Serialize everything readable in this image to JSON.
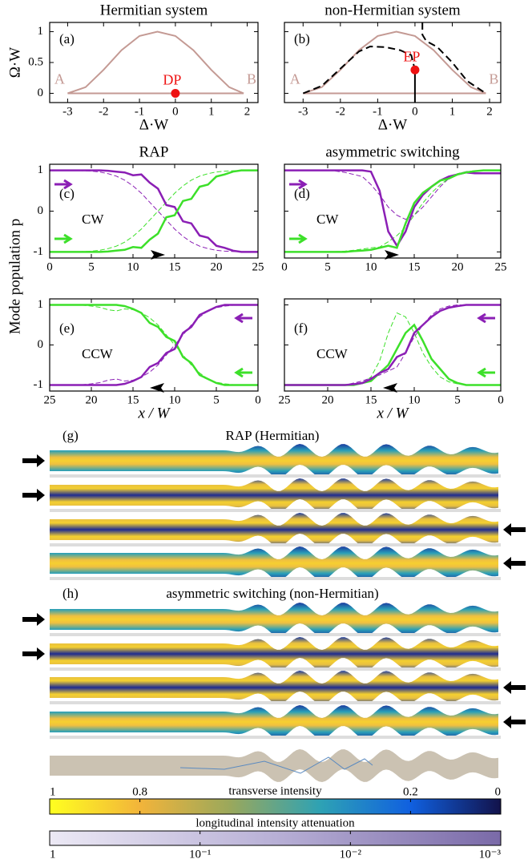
{
  "chart_data": [
    {
      "type": "line",
      "title": "Hermitian system",
      "panel_label": "(a)",
      "xlabel": "Δ·W",
      "ylabel": "Ω·W",
      "xlim": [
        -3.5,
        2.3
      ],
      "ylim": [
        -0.15,
        1.15
      ],
      "xticks": [
        -3,
        -2,
        -1,
        0,
        1,
        2
      ],
      "yticks": [
        0,
        0.5,
        1
      ],
      "series": [
        {
          "x": [
            -3,
            -2.5,
            -2,
            -1.5,
            -1,
            -0.5,
            0,
            0.5,
            1,
            1.5,
            1.9
          ],
          "values": [
            0,
            0.1,
            0.38,
            0.7,
            0.93,
            1,
            0.93,
            0.7,
            0.38,
            0.1,
            0
          ],
          "color": "#c49a94",
          "linewidth": 2
        },
        {
          "x": [
            -3,
            1.9
          ],
          "values": [
            0,
            0
          ],
          "color": "#c49a94",
          "linewidth": 2,
          "labels": [
            "A",
            "B"
          ]
        }
      ],
      "points": [
        {
          "label": "DP",
          "x": 0,
          "y": 0,
          "color": "#ee1111"
        }
      ]
    },
    {
      "type": "line",
      "title": "non-Hermitian system",
      "panel_label": "(b)",
      "xlabel": "Δ·W",
      "ytick_labels": false,
      "xlim": [
        -3.5,
        2.3
      ],
      "ylim": [
        -0.15,
        1.15
      ],
      "xticks": [
        -3,
        -2,
        -1,
        0,
        1,
        2
      ],
      "yticks": [
        0,
        0.5,
        1
      ],
      "series": [
        {
          "x": [
            -3,
            -2.5,
            -2,
            -1.5,
            -1,
            -0.5,
            0,
            0.5,
            1,
            1.5,
            1.9
          ],
          "values": [
            0,
            0.1,
            0.38,
            0.7,
            0.93,
            1,
            0.93,
            0.7,
            0.38,
            0.1,
            0
          ],
          "color": "#c49a94",
          "linewidth": 2
        },
        {
          "x": [
            -3,
            1.9
          ],
          "values": [
            0,
            0
          ],
          "color": "#c49a94",
          "linewidth": 2,
          "labels": [
            "A",
            "B"
          ]
        },
        {
          "x": [
            -3,
            -2.5,
            -2,
            -1.5,
            -1.2,
            -0.8,
            -0.4,
            -0.1,
            0
          ],
          "values": [
            0,
            0.12,
            0.4,
            0.68,
            0.76,
            0.75,
            0.7,
            0.62,
            0.38
          ],
          "color": "#000000",
          "linewidth": 2,
          "linestyle": "dashed"
        },
        {
          "x": [
            0.2,
            0.2,
            0.3,
            0.6,
            1,
            1.4,
            1.9
          ],
          "values": [
            1.15,
            0.95,
            0.85,
            0.75,
            0.5,
            0.2,
            0
          ],
          "color": "#000000",
          "linewidth": 2,
          "linestyle": "dashed"
        },
        {
          "x": [
            0,
            0
          ],
          "values": [
            0.38,
            -0.15
          ],
          "color": "#000000",
          "linewidth": 2
        }
      ],
      "points": [
        {
          "label": "EP",
          "x": 0,
          "y": 0.38,
          "color": "#ee1111"
        }
      ]
    },
    {
      "type": "line",
      "title": "RAP",
      "panel_label": "(c)",
      "annotation": "CW",
      "ylabel": "Mode population p",
      "xlim": [
        0,
        25
      ],
      "ylim": [
        -1.15,
        1.15
      ],
      "xticks": [
        0,
        5,
        10,
        15,
        20,
        25
      ],
      "yticks": [
        -1,
        0,
        1
      ],
      "x": [
        0,
        1,
        2,
        3,
        4,
        5,
        6,
        7,
        8,
        9,
        10,
        11,
        12,
        13,
        14,
        15,
        16,
        17,
        18,
        19,
        20,
        21,
        22,
        23,
        24,
        25
      ],
      "series": [
        {
          "values": [
            1,
            1,
            1,
            1,
            0.99,
            0.98,
            0.96,
            0.92,
            0.86,
            0.76,
            0.62,
            0.44,
            0.22,
            0,
            -0.22,
            -0.44,
            -0.62,
            -0.76,
            -0.86,
            -0.92,
            -0.96,
            -0.98,
            -0.99,
            -1,
            -1,
            -1
          ],
          "color": "#8b1fb5",
          "linewidth": 1,
          "linestyle": "dashed"
        },
        {
          "values": [
            -1,
            -1,
            -1,
            -1,
            -0.99,
            -0.98,
            -0.96,
            -0.92,
            -0.86,
            -0.76,
            -0.62,
            -0.44,
            -0.22,
            0,
            0.22,
            0.44,
            0.62,
            0.76,
            0.86,
            0.92,
            0.96,
            0.98,
            0.99,
            1,
            1,
            1
          ],
          "color": "#3de02a",
          "linewidth": 1,
          "linestyle": "dashed"
        },
        {
          "values": [
            1,
            1,
            1,
            1,
            1,
            1,
            1,
            0.99,
            0.97,
            0.95,
            0.88,
            0.9,
            0.7,
            0.55,
            0.15,
            0.1,
            -0.25,
            -0.3,
            -0.6,
            -0.65,
            -0.85,
            -0.9,
            -0.97,
            -1,
            -1,
            -1
          ],
          "color": "#8b1fb5",
          "linewidth": 2.5
        },
        {
          "values": [
            -1,
            -1,
            -1,
            -1,
            -1,
            -1,
            -1,
            -0.99,
            -0.97,
            -0.95,
            -0.88,
            -0.9,
            -0.7,
            -0.55,
            -0.15,
            -0.1,
            0.25,
            0.3,
            0.6,
            0.65,
            0.85,
            0.9,
            0.97,
            1,
            1,
            1
          ],
          "color": "#3de02a",
          "linewidth": 2.5
        }
      ]
    },
    {
      "type": "line",
      "title": "asymmetric switching",
      "panel_label": "(d)",
      "annotation": "CW",
      "ytick_labels": false,
      "xlim": [
        0,
        25
      ],
      "ylim": [
        -1.15,
        1.15
      ],
      "xticks": [
        0,
        5,
        10,
        15,
        20,
        25
      ],
      "yticks": [
        -1,
        0,
        1
      ],
      "x": [
        0,
        1,
        2,
        3,
        4,
        5,
        6,
        7,
        8,
        9,
        10,
        11,
        12,
        13,
        14,
        15,
        16,
        17,
        18,
        19,
        20,
        21,
        22,
        23,
        24,
        25
      ],
      "series": [
        {
          "values": [
            1,
            1,
            1,
            1,
            1,
            1,
            0.98,
            0.95,
            0.9,
            0.85,
            0.65,
            0.4,
            0.1,
            -0.1,
            -0.2,
            -0.1,
            0.1,
            0.35,
            0.6,
            0.8,
            0.9,
            0.97,
            0.99,
            1,
            1,
            1
          ],
          "color": "#8b1fb5",
          "linewidth": 1,
          "linestyle": "dashed"
        },
        {
          "values": [
            -1,
            -1,
            -1,
            -1,
            -1,
            -1,
            -0.99,
            -0.98,
            -0.96,
            -0.93,
            -0.9,
            -0.88,
            -0.75,
            -0.6,
            -0.4,
            -0.1,
            0.2,
            0.45,
            0.65,
            0.8,
            0.92,
            0.97,
            0.99,
            1,
            1,
            1
          ],
          "color": "#3de02a",
          "linewidth": 1,
          "linestyle": "dashed"
        },
        {
          "values": [
            1,
            1,
            1,
            1,
            1,
            1,
            1,
            1,
            1,
            1,
            0.97,
            0.5,
            -0.5,
            -0.85,
            -0.5,
            0.1,
            0.4,
            0.6,
            0.75,
            0.85,
            0.9,
            0.95,
            0.93,
            0.93,
            0.93,
            0.93
          ],
          "color": "#8b1fb5",
          "linewidth": 2.5
        },
        {
          "values": [
            -1,
            -1,
            -1,
            -1,
            -1,
            -1,
            -1,
            -1,
            -0.98,
            -0.97,
            -0.95,
            -0.9,
            -0.85,
            -0.9,
            -0.3,
            0.2,
            0.45,
            0.6,
            0.75,
            0.8,
            0.9,
            0.95,
            0.98,
            1,
            1,
            1
          ],
          "color": "#3de02a",
          "linewidth": 2.5
        }
      ]
    },
    {
      "type": "line",
      "panel_label": "(e)",
      "annotation": "CCW",
      "xlabel": "x / W",
      "xlim": [
        25,
        0
      ],
      "ylim": [
        -1.15,
        1.15
      ],
      "xticks": [
        25,
        20,
        15,
        10,
        5,
        0
      ],
      "yticks": [
        -1,
        0,
        1
      ],
      "x": [
        0,
        1,
        2,
        3,
        4,
        5,
        6,
        7,
        8,
        9,
        10,
        11,
        12,
        13,
        14,
        15,
        16,
        17,
        18,
        19,
        20,
        21,
        22,
        23,
        24,
        25
      ],
      "series": [
        {
          "values": [
            -1,
            -1,
            -1,
            -0.99,
            -0.97,
            -0.93,
            -0.85,
            -0.7,
            -0.5,
            -0.25,
            0,
            0.25,
            0.5,
            0.68,
            0.8,
            0.88,
            0.9,
            0.85,
            0.88,
            0.94,
            0.97,
            0.99,
            1,
            1,
            1,
            1
          ],
          "color": "#3de02a",
          "linewidth": 1,
          "linestyle": "dashed"
        },
        {
          "values": [
            1,
            1,
            1,
            0.99,
            0.97,
            0.93,
            0.85,
            0.7,
            0.5,
            0.25,
            0,
            -0.25,
            -0.5,
            -0.68,
            -0.8,
            -0.88,
            -0.9,
            -0.85,
            -0.88,
            -0.94,
            -0.97,
            -0.99,
            -1,
            -1,
            -1,
            -1
          ],
          "color": "#8b1fb5",
          "linewidth": 1,
          "linestyle": "dashed"
        },
        {
          "values": [
            -1,
            -1,
            -1,
            -1,
            -1,
            -0.95,
            -0.85,
            -0.75,
            -0.45,
            -0.3,
            0.1,
            0.2,
            0.45,
            0.55,
            0.8,
            0.9,
            0.97,
            1,
            1,
            1,
            1,
            1,
            1,
            1,
            1,
            1
          ],
          "color": "#3de02a",
          "linewidth": 2.5
        },
        {
          "values": [
            1,
            1,
            1,
            1,
            1,
            0.95,
            0.85,
            0.75,
            0.45,
            0.3,
            -0.1,
            -0.2,
            -0.45,
            -0.55,
            -0.8,
            -0.9,
            -0.97,
            -1,
            -1,
            -1,
            -1,
            -1,
            -1,
            -1,
            -1,
            -1
          ],
          "color": "#8b1fb5",
          "linewidth": 2.5
        }
      ]
    },
    {
      "type": "line",
      "panel_label": "(f)",
      "annotation": "CCW",
      "xlabel": "x / W",
      "ytick_labels": false,
      "xlim": [
        25,
        0
      ],
      "ylim": [
        -1.15,
        1.15
      ],
      "xticks": [
        25,
        20,
        15,
        10,
        5,
        0
      ],
      "yticks": [
        -1,
        0,
        1
      ],
      "x": [
        0,
        1,
        2,
        3,
        4,
        5,
        6,
        7,
        8,
        9,
        10,
        11,
        12,
        13,
        14,
        15,
        16,
        17,
        18,
        19,
        20,
        21,
        22,
        23,
        24,
        25
      ],
      "series": [
        {
          "values": [
            -1,
            -1,
            -1,
            -1,
            -1,
            -0.97,
            -0.92,
            -0.8,
            -0.55,
            -0.2,
            0.3,
            0.7,
            0.8,
            0.3,
            -0.4,
            -0.8,
            -0.95,
            -0.98,
            -1,
            -1,
            -1,
            -1,
            -1,
            -1,
            -1,
            -1
          ],
          "color": "#3de02a",
          "linewidth": 1,
          "linestyle": "dashed"
        },
        {
          "values": [
            1,
            1,
            1,
            1,
            1,
            1,
            0.97,
            0.9,
            0.75,
            0.5,
            0.2,
            -0.2,
            -0.55,
            -0.65,
            -0.75,
            -0.82,
            -0.9,
            -0.95,
            -1,
            -1,
            -1,
            -1,
            -1,
            -1,
            -1,
            -1
          ],
          "color": "#8b1fb5",
          "linewidth": 1,
          "linestyle": "dashed"
        },
        {
          "values": [
            -1,
            -1,
            -1,
            -1,
            -1,
            -0.95,
            -0.85,
            -0.6,
            -0.35,
            0.1,
            0.5,
            0.3,
            -0.1,
            -0.5,
            -0.7,
            -0.9,
            -0.95,
            -1,
            -1,
            -1,
            -1,
            -1,
            -1,
            -1,
            -1,
            -1
          ],
          "color": "#3de02a",
          "linewidth": 2.5
        },
        {
          "values": [
            1,
            1,
            1,
            1,
            1,
            0.97,
            0.93,
            0.85,
            0.7,
            0.5,
            0.3,
            -0.2,
            -0.3,
            -0.6,
            -0.7,
            -0.85,
            -0.95,
            -0.98,
            -1,
            -1,
            -1,
            -1,
            -1,
            -1,
            -1,
            -1
          ],
          "color": "#8b1fb5",
          "linewidth": 2.5
        }
      ]
    },
    {
      "type": "colorbar",
      "title": "transverse intensity",
      "xlim": [
        1,
        0
      ],
      "xticks": [
        1,
        0.8,
        0.2,
        0
      ],
      "colors": [
        "#ffff20",
        "#f2b43a",
        "#9aa85c",
        "#2ea2b4",
        "#1060e0",
        "#12124a"
      ]
    },
    {
      "type": "colorbar",
      "title": "longitudinal intensity attenuation",
      "log": true,
      "xlim": [
        1,
        0.001
      ],
      "xticks": [
        1,
        {
          "value": 0.1,
          "label": "10⁻¹"
        },
        {
          "value": 0.01,
          "label": "10⁻²"
        },
        {
          "value": 0.001,
          "label": "10⁻³"
        }
      ],
      "colors": [
        "#ece9f5",
        "#b8b0d6",
        "#7a6aa8"
      ]
    }
  ],
  "waveguides": [
    {
      "label": "(g)",
      "title": "RAP (Hermitian)"
    },
    {
      "label": "(h)",
      "title": "asymmetric switching (non-Hermitian)"
    }
  ]
}
